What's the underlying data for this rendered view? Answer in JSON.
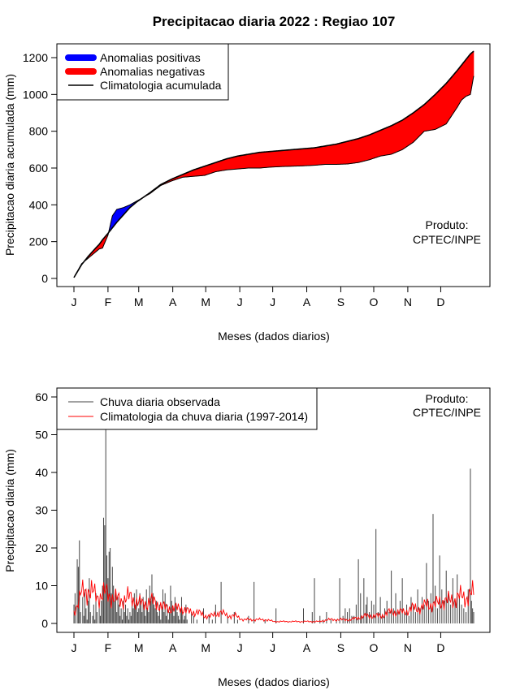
{
  "page": {
    "title": "Precipitacao diaria 2022 : Regiao 107"
  },
  "months": [
    "J",
    "F",
    "M",
    "A",
    "M",
    "J",
    "J",
    "A",
    "S",
    "O",
    "N",
    "D"
  ],
  "month_days": [
    1,
    32,
    60,
    91,
    121,
    152,
    182,
    213,
    244,
    274,
    305,
    335
  ],
  "colors": {
    "positive": "#0000ff",
    "negative": "#ff0000",
    "climatology_line": "#000000",
    "observed_bars": "#444444",
    "climatology_daily": "#ff0000"
  },
  "chart_data": [
    {
      "type": "area",
      "ylabel": "Precipitacao diaria acumulada (mm)",
      "xlabel": "Meses (dados diarios)",
      "ylim": [
        0,
        1200
      ],
      "xlim": [
        1,
        365
      ],
      "yticks": [
        0,
        200,
        400,
        600,
        800,
        1000,
        1200
      ],
      "legend_position": "top-left",
      "legend": {
        "positive": "Anomalias positivas",
        "negative": "Anomalias negativas",
        "climatology": "Climatologia acumulada"
      },
      "annotation": [
        "Produto:",
        "CPTEC/INPE"
      ],
      "observed_cumulative": {
        "x": [
          1,
          8,
          14,
          20,
          24,
          27,
          32,
          36,
          40,
          46,
          52,
          58,
          64,
          70,
          80,
          90,
          100,
          110,
          120,
          130,
          140,
          150,
          160,
          170,
          180,
          190,
          200,
          210,
          220,
          230,
          240,
          250,
          260,
          270,
          280,
          290,
          300,
          310,
          320,
          330,
          340,
          350,
          354,
          358,
          362,
          365
        ],
        "y": [
          5,
          80,
          110,
          140,
          160,
          165,
          235,
          340,
          375,
          385,
          400,
          420,
          440,
          460,
          505,
          530,
          550,
          555,
          560,
          580,
          590,
          595,
          600,
          600,
          605,
          608,
          610,
          612,
          615,
          620,
          620,
          622,
          630,
          645,
          665,
          675,
          700,
          740,
          800,
          810,
          840,
          930,
          970,
          990,
          1000,
          1100
        ]
      },
      "climatology_cumulative": {
        "x": [
          1,
          8,
          14,
          20,
          24,
          27,
          32,
          36,
          40,
          46,
          52,
          58,
          64,
          70,
          80,
          90,
          100,
          110,
          120,
          130,
          140,
          150,
          160,
          170,
          180,
          190,
          200,
          210,
          220,
          230,
          240,
          250,
          260,
          270,
          280,
          290,
          300,
          310,
          320,
          330,
          340,
          350,
          354,
          358,
          362,
          365
        ],
        "y": [
          5,
          75,
          120,
          160,
          185,
          210,
          245,
          275,
          305,
          345,
          385,
          415,
          440,
          465,
          510,
          540,
          565,
          590,
          610,
          630,
          650,
          665,
          675,
          685,
          690,
          695,
          700,
          705,
          710,
          720,
          730,
          745,
          760,
          780,
          805,
          830,
          860,
          900,
          945,
          1000,
          1060,
          1130,
          1160,
          1190,
          1220,
          1235
        ]
      }
    },
    {
      "type": "bar",
      "ylabel": "Precipitacao diaria (mm)",
      "xlabel": "Meses (dados diarios)",
      "ylim": [
        0,
        60
      ],
      "xlim": [
        1,
        365
      ],
      "yticks": [
        0,
        10,
        20,
        30,
        40,
        50,
        60
      ],
      "legend_position": "top-left",
      "legend": {
        "observed": "Chuva diaria observada",
        "climatology": "Climatologia da chuva diaria (1997-2014)"
      },
      "annotation": [
        "Produto:",
        "CPTEC/INPE"
      ],
      "observed_daily": [
        [
          1,
          5
        ],
        [
          2,
          8
        ],
        [
          3,
          0
        ],
        [
          4,
          17
        ],
        [
          5,
          15
        ],
        [
          6,
          22
        ],
        [
          7,
          3
        ],
        [
          8,
          0
        ],
        [
          9,
          7
        ],
        [
          10,
          2
        ],
        [
          11,
          9
        ],
        [
          12,
          4
        ],
        [
          13,
          1
        ],
        [
          14,
          6
        ],
        [
          15,
          12
        ],
        [
          16,
          3
        ],
        [
          17,
          0
        ],
        [
          18,
          2
        ],
        [
          19,
          5
        ],
        [
          20,
          1
        ],
        [
          21,
          8
        ],
        [
          22,
          3
        ],
        [
          23,
          0
        ],
        [
          24,
          4
        ],
        [
          25,
          2
        ],
        [
          26,
          6
        ],
        [
          27,
          10
        ],
        [
          28,
          28
        ],
        [
          29,
          26
        ],
        [
          30,
          55
        ],
        [
          31,
          18
        ],
        [
          32,
          12
        ],
        [
          33,
          19
        ],
        [
          34,
          20
        ],
        [
          35,
          8
        ],
        [
          36,
          15
        ],
        [
          37,
          10
        ],
        [
          38,
          6
        ],
        [
          39,
          9
        ],
        [
          40,
          3
        ],
        [
          41,
          7
        ],
        [
          42,
          5
        ],
        [
          43,
          2
        ],
        [
          44,
          4
        ],
        [
          45,
          1
        ],
        [
          46,
          6
        ],
        [
          47,
          3
        ],
        [
          48,
          5
        ],
        [
          49,
          2
        ],
        [
          50,
          4
        ],
        [
          51,
          1
        ],
        [
          52,
          3
        ],
        [
          53,
          2
        ],
        [
          54,
          6
        ],
        [
          55,
          4
        ],
        [
          56,
          8
        ],
        [
          57,
          5
        ],
        [
          58,
          9
        ],
        [
          59,
          3
        ],
        [
          60,
          4
        ],
        [
          61,
          8
        ],
        [
          62,
          6
        ],
        [
          63,
          3
        ],
        [
          64,
          7
        ],
        [
          65,
          5
        ],
        [
          66,
          2
        ],
        [
          67,
          9
        ],
        [
          68,
          4
        ],
        [
          69,
          3
        ],
        [
          70,
          10
        ],
        [
          71,
          6
        ],
        [
          72,
          13
        ],
        [
          73,
          8
        ],
        [
          74,
          5
        ],
        [
          75,
          4
        ],
        [
          76,
          6
        ],
        [
          77,
          3
        ],
        [
          78,
          2
        ],
        [
          79,
          5
        ],
        [
          80,
          1
        ],
        [
          81,
          4
        ],
        [
          82,
          9
        ],
        [
          83,
          3
        ],
        [
          84,
          8
        ],
        [
          85,
          2
        ],
        [
          86,
          5
        ],
        [
          87,
          1
        ],
        [
          88,
          3
        ],
        [
          89,
          10
        ],
        [
          90,
          6
        ],
        [
          91,
          4
        ],
        [
          92,
          2
        ],
        [
          93,
          7
        ],
        [
          94,
          5
        ],
        [
          95,
          3
        ],
        [
          96,
          2
        ],
        [
          97,
          1
        ],
        [
          98,
          4
        ],
        [
          99,
          7
        ],
        [
          100,
          3
        ],
        [
          101,
          1
        ],
        [
          102,
          2
        ],
        [
          103,
          5
        ],
        [
          104,
          1
        ],
        [
          108,
          3
        ],
        [
          110,
          2
        ],
        [
          113,
          1
        ],
        [
          119,
          4
        ],
        [
          124,
          2
        ],
        [
          127,
          1
        ],
        [
          130,
          5
        ],
        [
          135,
          11
        ],
        [
          141,
          2
        ],
        [
          147,
          3
        ],
        [
          150,
          1
        ],
        [
          160,
          2
        ],
        [
          165,
          11
        ],
        [
          175,
          1
        ],
        [
          185,
          4
        ],
        [
          210,
          4
        ],
        [
          218,
          3
        ],
        [
          220,
          12
        ],
        [
          225,
          2
        ],
        [
          228,
          1
        ],
        [
          231,
          3
        ],
        [
          235,
          1
        ],
        [
          240,
          1
        ],
        [
          243,
          12
        ],
        [
          246,
          2
        ],
        [
          248,
          4
        ],
        [
          250,
          3
        ],
        [
          252,
          4
        ],
        [
          254,
          2
        ],
        [
          256,
          2
        ],
        [
          258,
          5
        ],
        [
          260,
          17
        ],
        [
          262,
          8
        ],
        [
          263,
          2
        ],
        [
          265,
          12
        ],
        [
          267,
          5
        ],
        [
          268,
          7
        ],
        [
          270,
          3
        ],
        [
          272,
          6
        ],
        [
          274,
          5
        ],
        [
          276,
          25
        ],
        [
          278,
          3
        ],
        [
          280,
          7
        ],
        [
          282,
          2
        ],
        [
          284,
          4
        ],
        [
          286,
          6
        ],
        [
          288,
          3
        ],
        [
          290,
          14
        ],
        [
          292,
          4
        ],
        [
          294,
          8
        ],
        [
          296,
          3
        ],
        [
          298,
          6
        ],
        [
          300,
          12
        ],
        [
          302,
          3
        ],
        [
          304,
          5
        ],
        [
          306,
          2
        ],
        [
          308,
          7
        ],
        [
          310,
          5
        ],
        [
          312,
          3
        ],
        [
          314,
          9
        ],
        [
          316,
          4
        ],
        [
          318,
          7
        ],
        [
          320,
          5
        ],
        [
          322,
          16
        ],
        [
          324,
          6
        ],
        [
          326,
          8
        ],
        [
          328,
          29
        ],
        [
          330,
          10
        ],
        [
          332,
          4
        ],
        [
          334,
          18
        ],
        [
          336,
          9
        ],
        [
          338,
          6
        ],
        [
          340,
          14
        ],
        [
          342,
          8
        ],
        [
          344,
          5
        ],
        [
          346,
          12
        ],
        [
          348,
          6
        ],
        [
          350,
          13
        ],
        [
          352,
          7
        ],
        [
          354,
          5
        ],
        [
          356,
          4
        ],
        [
          358,
          3
        ],
        [
          360,
          9
        ],
        [
          362,
          41
        ],
        [
          363,
          6
        ],
        [
          364,
          4
        ],
        [
          365,
          3
        ]
      ],
      "climatology_daily": {
        "x": [
          1,
          8,
          15,
          22,
          29,
          36,
          43,
          50,
          57,
          64,
          71,
          78,
          85,
          92,
          99,
          106,
          113,
          120,
          127,
          134,
          141,
          148,
          155,
          162,
          169,
          176,
          183,
          190,
          197,
          204,
          211,
          218,
          225,
          232,
          239,
          246,
          253,
          260,
          267,
          274,
          281,
          288,
          295,
          302,
          309,
          316,
          323,
          330,
          337,
          344,
          351,
          358,
          365
        ],
        "y": [
          3,
          8,
          9,
          7,
          8,
          7,
          6,
          7,
          6,
          5,
          6,
          5,
          4,
          4,
          4,
          3,
          3,
          2,
          2,
          3,
          2,
          2,
          1,
          1,
          1,
          1,
          0.5,
          0.5,
          0.5,
          0.5,
          0.5,
          0.5,
          0.5,
          1,
          1,
          1,
          1,
          1.5,
          2,
          2,
          2,
          3,
          3,
          3,
          4,
          4,
          5,
          5,
          6,
          6,
          7,
          7,
          8
        ]
      }
    }
  ]
}
